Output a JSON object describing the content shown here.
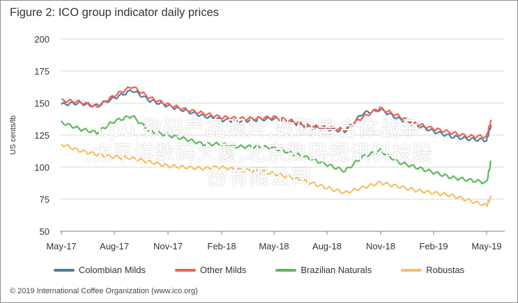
{
  "title": "Figure 2: ICO group indicator daily prices",
  "overlay_text": {
    "line1": "cpu,数码产品照片,数码兽合体战争",
    "line2": ",太平洋数码大厦,北京数码视讯科技股",
    "line3": "份有限公司"
  },
  "footer": "© 2019 International Coffee Organization (www.ico.org)",
  "chart_data": {
    "type": "line",
    "title": "Figure 2: ICO group indicator daily prices",
    "xlabel": "",
    "ylabel": "US cents/lb",
    "ylim": [
      50,
      200
    ],
    "yticks": [
      50,
      75,
      100,
      125,
      150,
      175,
      200
    ],
    "x_tick_labels": [
      "May-17",
      "Aug-17",
      "Nov-17",
      "Feb-18",
      "May-18",
      "Aug-18",
      "Nov-18",
      "Feb-19",
      "May-19"
    ],
    "x_months": [
      "May-17",
      "Jun-17",
      "Jul-17",
      "Aug-17",
      "Sep-17",
      "Oct-17",
      "Nov-17",
      "Dec-17",
      "Jan-18",
      "Feb-18",
      "Mar-18",
      "Apr-18",
      "May-18",
      "Jun-18",
      "Jul-18",
      "Aug-18",
      "Sep-18",
      "Oct-18",
      "Nov-18",
      "Dec-18",
      "Jan-19",
      "Feb-19",
      "Mar-19",
      "Apr-19",
      "May-19",
      "May-19 (end)"
    ],
    "grid": "horizontal",
    "legend_position": "bottom",
    "series": [
      {
        "name": "Colombian Milds",
        "color": "#4f7fa3",
        "values": [
          149,
          150,
          148,
          154,
          160,
          152,
          148,
          144,
          140,
          137,
          136,
          137,
          138,
          135,
          131,
          130,
          128,
          142,
          145,
          138,
          133,
          128,
          124,
          122,
          121,
          133
        ]
      },
      {
        "name": "Other Milds",
        "color": "#f0614e",
        "values": [
          152,
          151,
          147,
          156,
          163,
          154,
          149,
          145,
          142,
          139,
          138,
          138,
          139,
          136,
          132,
          131,
          129,
          139,
          146,
          140,
          134,
          130,
          127,
          124,
          124,
          137
        ]
      },
      {
        "name": "Brazilian Naturals",
        "color": "#5cb85c",
        "values": [
          135,
          130,
          127,
          136,
          140,
          128,
          125,
          122,
          118,
          118,
          116,
          116,
          115,
          111,
          107,
          102,
          97,
          108,
          113,
          104,
          100,
          96,
          92,
          90,
          88,
          105
        ]
      },
      {
        "name": "Robustas",
        "color": "#f7c062",
        "values": [
          118,
          113,
          110,
          108,
          107,
          104,
          101,
          100,
          99,
          100,
          98,
          97,
          95,
          92,
          88,
          84,
          80,
          84,
          88,
          85,
          82,
          80,
          78,
          74,
          70,
          77
        ]
      }
    ]
  }
}
